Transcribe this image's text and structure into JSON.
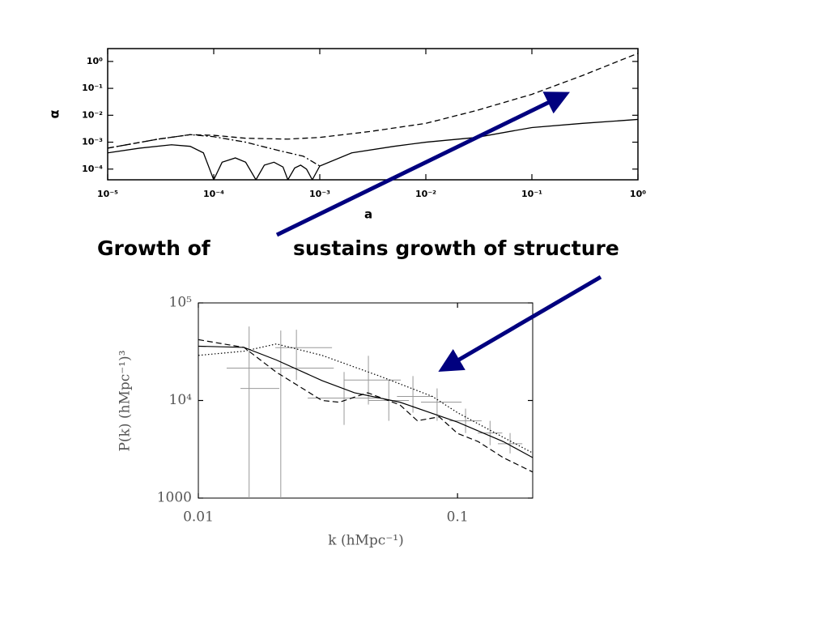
{
  "caption": {
    "left": "Growth of",
    "right": "sustains growth of structure"
  },
  "chart_data": [
    {
      "type": "line",
      "xlabel": "a",
      "ylabel": "α",
      "xscale": "log",
      "yscale": "log",
      "xlim": [
        1e-05,
        1
      ],
      "ylim": [
        4e-05,
        3
      ],
      "xticks": [
        {
          "value": 1e-05,
          "label": "10⁻⁵"
        },
        {
          "value": 0.0001,
          "label": "10⁻⁴"
        },
        {
          "value": 0.001,
          "label": "10⁻³"
        },
        {
          "value": 0.01,
          "label": "10⁻²"
        },
        {
          "value": 0.1,
          "label": "10⁻¹"
        },
        {
          "value": 1,
          "label": "10⁰"
        }
      ],
      "yticks": [
        {
          "value": 0.0001,
          "label": "10⁻⁴"
        },
        {
          "value": 0.001,
          "label": "10⁻³"
        },
        {
          "value": 0.01,
          "label": "10⁻²"
        },
        {
          "value": 0.1,
          "label": "10⁻¹"
        },
        {
          "value": 1,
          "label": "10⁰"
        }
      ],
      "series": [
        {
          "color": "#000",
          "style": "dashed",
          "x": [
            1e-05,
            3e-05,
            6e-05,
            0.0001,
            0.0002,
            0.0005,
            0.001,
            0.003,
            0.01,
            0.03,
            0.1,
            0.3,
            1
          ],
          "values": [
            0.0006,
            0.0013,
            0.0019,
            0.0018,
            0.0014,
            0.0013,
            0.0015,
            0.0025,
            0.005,
            0.015,
            0.06,
            0.3,
            2
          ]
        },
        {
          "color": "#000",
          "style": "dashdot",
          "x": [
            1e-05,
            3e-05,
            6e-05,
            0.0001,
            0.0002,
            0.0004,
            0.0007,
            0.001
          ],
          "values": [
            0.0006,
            0.0013,
            0.0019,
            0.0016,
            0.001,
            0.0005,
            0.0003,
            0.00013
          ]
        },
        {
          "color": "#000",
          "style": "solid",
          "x": [
            1e-05,
            2e-05,
            4e-05,
            6e-05,
            8e-05,
            0.0001,
            0.00012,
            0.00016,
            0.0002,
            0.00025,
            0.0003,
            0.00037,
            0.00045,
            0.0005,
            0.00058,
            0.00066,
            0.00075,
            0.00085,
            0.001,
            0.002,
            0.005,
            0.01,
            0.03,
            0.1,
            0.3,
            1
          ],
          "values": [
            0.0004,
            0.0006,
            0.0008,
            0.0007,
            0.0004,
            4e-05,
            0.00018,
            0.00026,
            0.00018,
            4e-05,
            0.00014,
            0.00018,
            0.00012,
            4e-05,
            0.00011,
            0.00014,
            0.0001,
            4e-05,
            0.00013,
            0.0004,
            0.0007,
            0.001,
            0.0015,
            0.0035,
            0.005,
            0.007
          ]
        }
      ]
    },
    {
      "type": "line",
      "xlabel": "k (hMpc⁻¹)",
      "ylabel": "P(k) (hMpc⁻¹)³",
      "xscale": "log",
      "yscale": "log",
      "xlim": [
        0.01,
        0.195
      ],
      "ylim": [
        1000,
        100000
      ],
      "xticks": [
        0.01,
        0.1
      ],
      "yticks": [
        1000,
        {
          "value": 10000,
          "label": "10⁴"
        },
        {
          "value": 100000,
          "label": "10⁵"
        }
      ],
      "series": [
        {
          "color": "#000",
          "style": "solid",
          "x": [
            0.01,
            0.015,
            0.02,
            0.03,
            0.04,
            0.06,
            0.1,
            0.15,
            0.195
          ],
          "values": [
            36000,
            35000,
            26000,
            16000,
            12000,
            9600,
            6000,
            3800,
            2600
          ]
        },
        {
          "color": "#000",
          "style": "dashed",
          "x": [
            0.01,
            0.015,
            0.02,
            0.03,
            0.035,
            0.045,
            0.06,
            0.07,
            0.085,
            0.1,
            0.12,
            0.15,
            0.195
          ],
          "values": [
            42000,
            35000,
            19500,
            10000,
            9600,
            12000,
            9000,
            6200,
            6800,
            4600,
            3800,
            2600,
            1850
          ]
        },
        {
          "color": "#000",
          "style": "dotted",
          "x": [
            0.01,
            0.015,
            0.02,
            0.03,
            0.05,
            0.08,
            0.1,
            0.15,
            0.195
          ],
          "values": [
            29000,
            32000,
            38000,
            29000,
            17800,
            11000,
            7500,
            4200,
            2900
          ]
        }
      ],
      "error_points": {
        "color": "#999",
        "x": [
          0.0157,
          0.0208,
          0.0239,
          0.0365,
          0.0453,
          0.0543,
          0.0673,
          0.0834,
          0.1074,
          0.1335,
          0.1595
        ],
        "values": [
          13300,
          21500,
          34800,
          10600,
          16200,
          10000,
          11000,
          9620,
          6190,
          4640,
          3610
        ],
        "y_low": [
          1000,
          1000,
          16200,
          5620,
          9090,
          6190,
          7500,
          6190,
          4640,
          3480,
          2870
        ],
        "y_high": [
          57300,
          52100,
          53100,
          19600,
          28700,
          16200,
          17800,
          13300,
          8250,
          6190,
          4640
        ],
        "x_low": [
          0.01454,
          0.01286,
          0.01982,
          0.02642,
          0.0365,
          0.0453,
          0.0584,
          0.0723,
          0.0931,
          0.1197,
          0.1431
        ],
        "x_high": [
          0.02053,
          0.0333,
          0.03279,
          0.0505,
          0.0604,
          0.06491,
          0.0805,
          0.1037,
          0.1239,
          0.1488,
          0.1778
        ]
      }
    }
  ]
}
